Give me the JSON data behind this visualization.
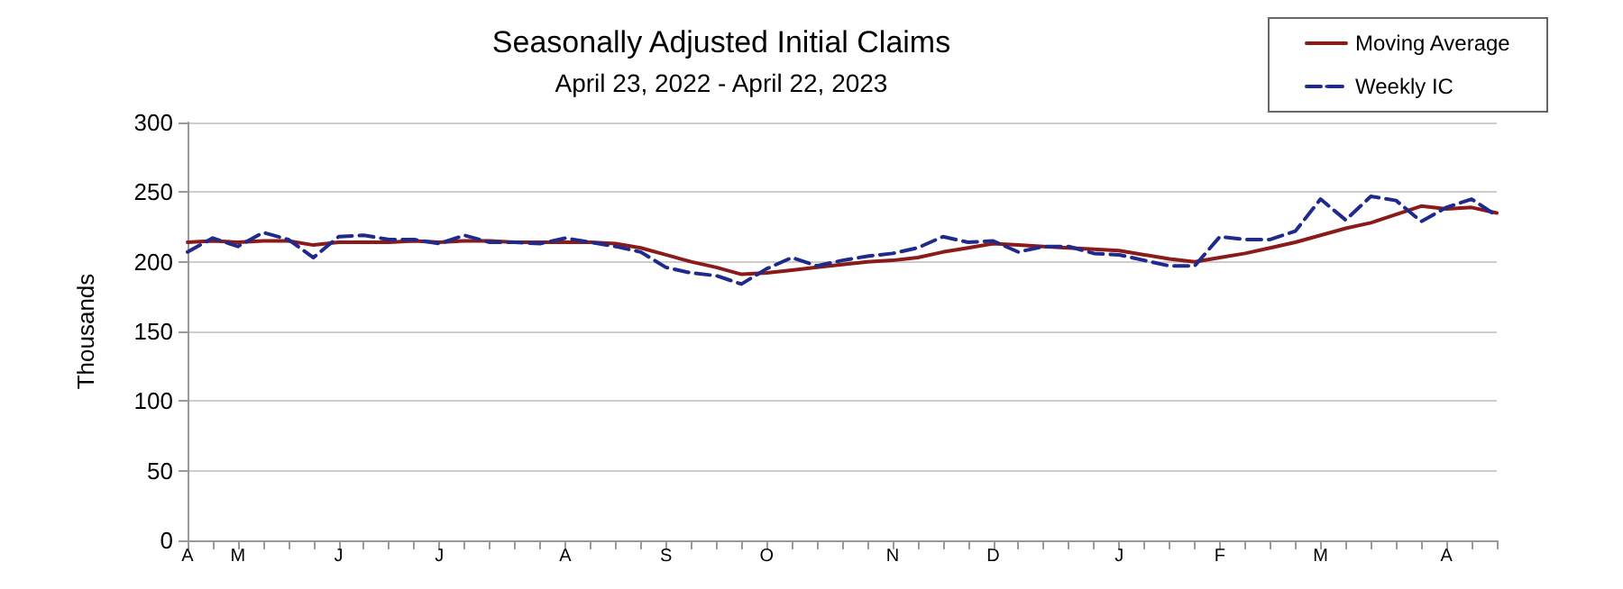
{
  "chart_data": {
    "type": "line",
    "title": "Seasonally Adjusted Initial Claims",
    "subtitle": "April 23, 2022 - April 22, 2023",
    "ylabel": "Thousands",
    "categories": [
      "A",
      null,
      "M",
      null,
      null,
      null,
      "J",
      null,
      null,
      null,
      "J",
      null,
      null,
      null,
      null,
      "A",
      null,
      null,
      null,
      "S",
      null,
      null,
      null,
      "O",
      null,
      null,
      null,
      null,
      "N",
      null,
      null,
      null,
      "D",
      null,
      null,
      null,
      null,
      "J",
      null,
      null,
      null,
      "F",
      null,
      null,
      null,
      "M",
      null,
      null,
      null,
      null,
      "A",
      null,
      null
    ],
    "series": [
      {
        "name": "Moving Average",
        "color": "#8b1a1a",
        "line_style": "solid",
        "values": [
          214,
          215,
          214,
          215,
          215,
          212,
          214,
          214,
          214,
          215,
          214,
          215,
          215,
          214,
          214,
          214,
          214,
          213,
          210,
          205,
          200,
          196,
          191,
          192,
          194,
          196,
          198,
          200,
          201,
          203,
          207,
          210,
          213,
          212,
          211,
          210,
          209,
          208,
          205,
          202,
          200,
          203,
          206,
          210,
          214,
          219,
          224,
          228,
          234,
          240,
          238,
          239,
          235
        ]
      },
      {
        "name": "Weekly IC",
        "color": "#1f2a8c",
        "line_style": "dashed",
        "values": [
          207,
          217,
          211,
          221,
          216,
          203,
          218,
          219,
          216,
          216,
          213,
          219,
          214,
          214,
          213,
          217,
          214,
          211,
          207,
          196,
          192,
          190,
          184,
          195,
          203,
          197,
          201,
          204,
          206,
          210,
          218,
          214,
          215,
          207,
          211,
          211,
          206,
          205,
          201,
          197,
          197,
          218,
          216,
          216,
          222,
          245,
          230,
          247,
          244,
          229,
          239,
          245,
          233
        ]
      }
    ],
    "ylim": [
      0,
      300
    ],
    "yticks": [
      0,
      50,
      100,
      150,
      200,
      250,
      300
    ],
    "grid": "y",
    "legend": "top right",
    "marker": "none"
  }
}
